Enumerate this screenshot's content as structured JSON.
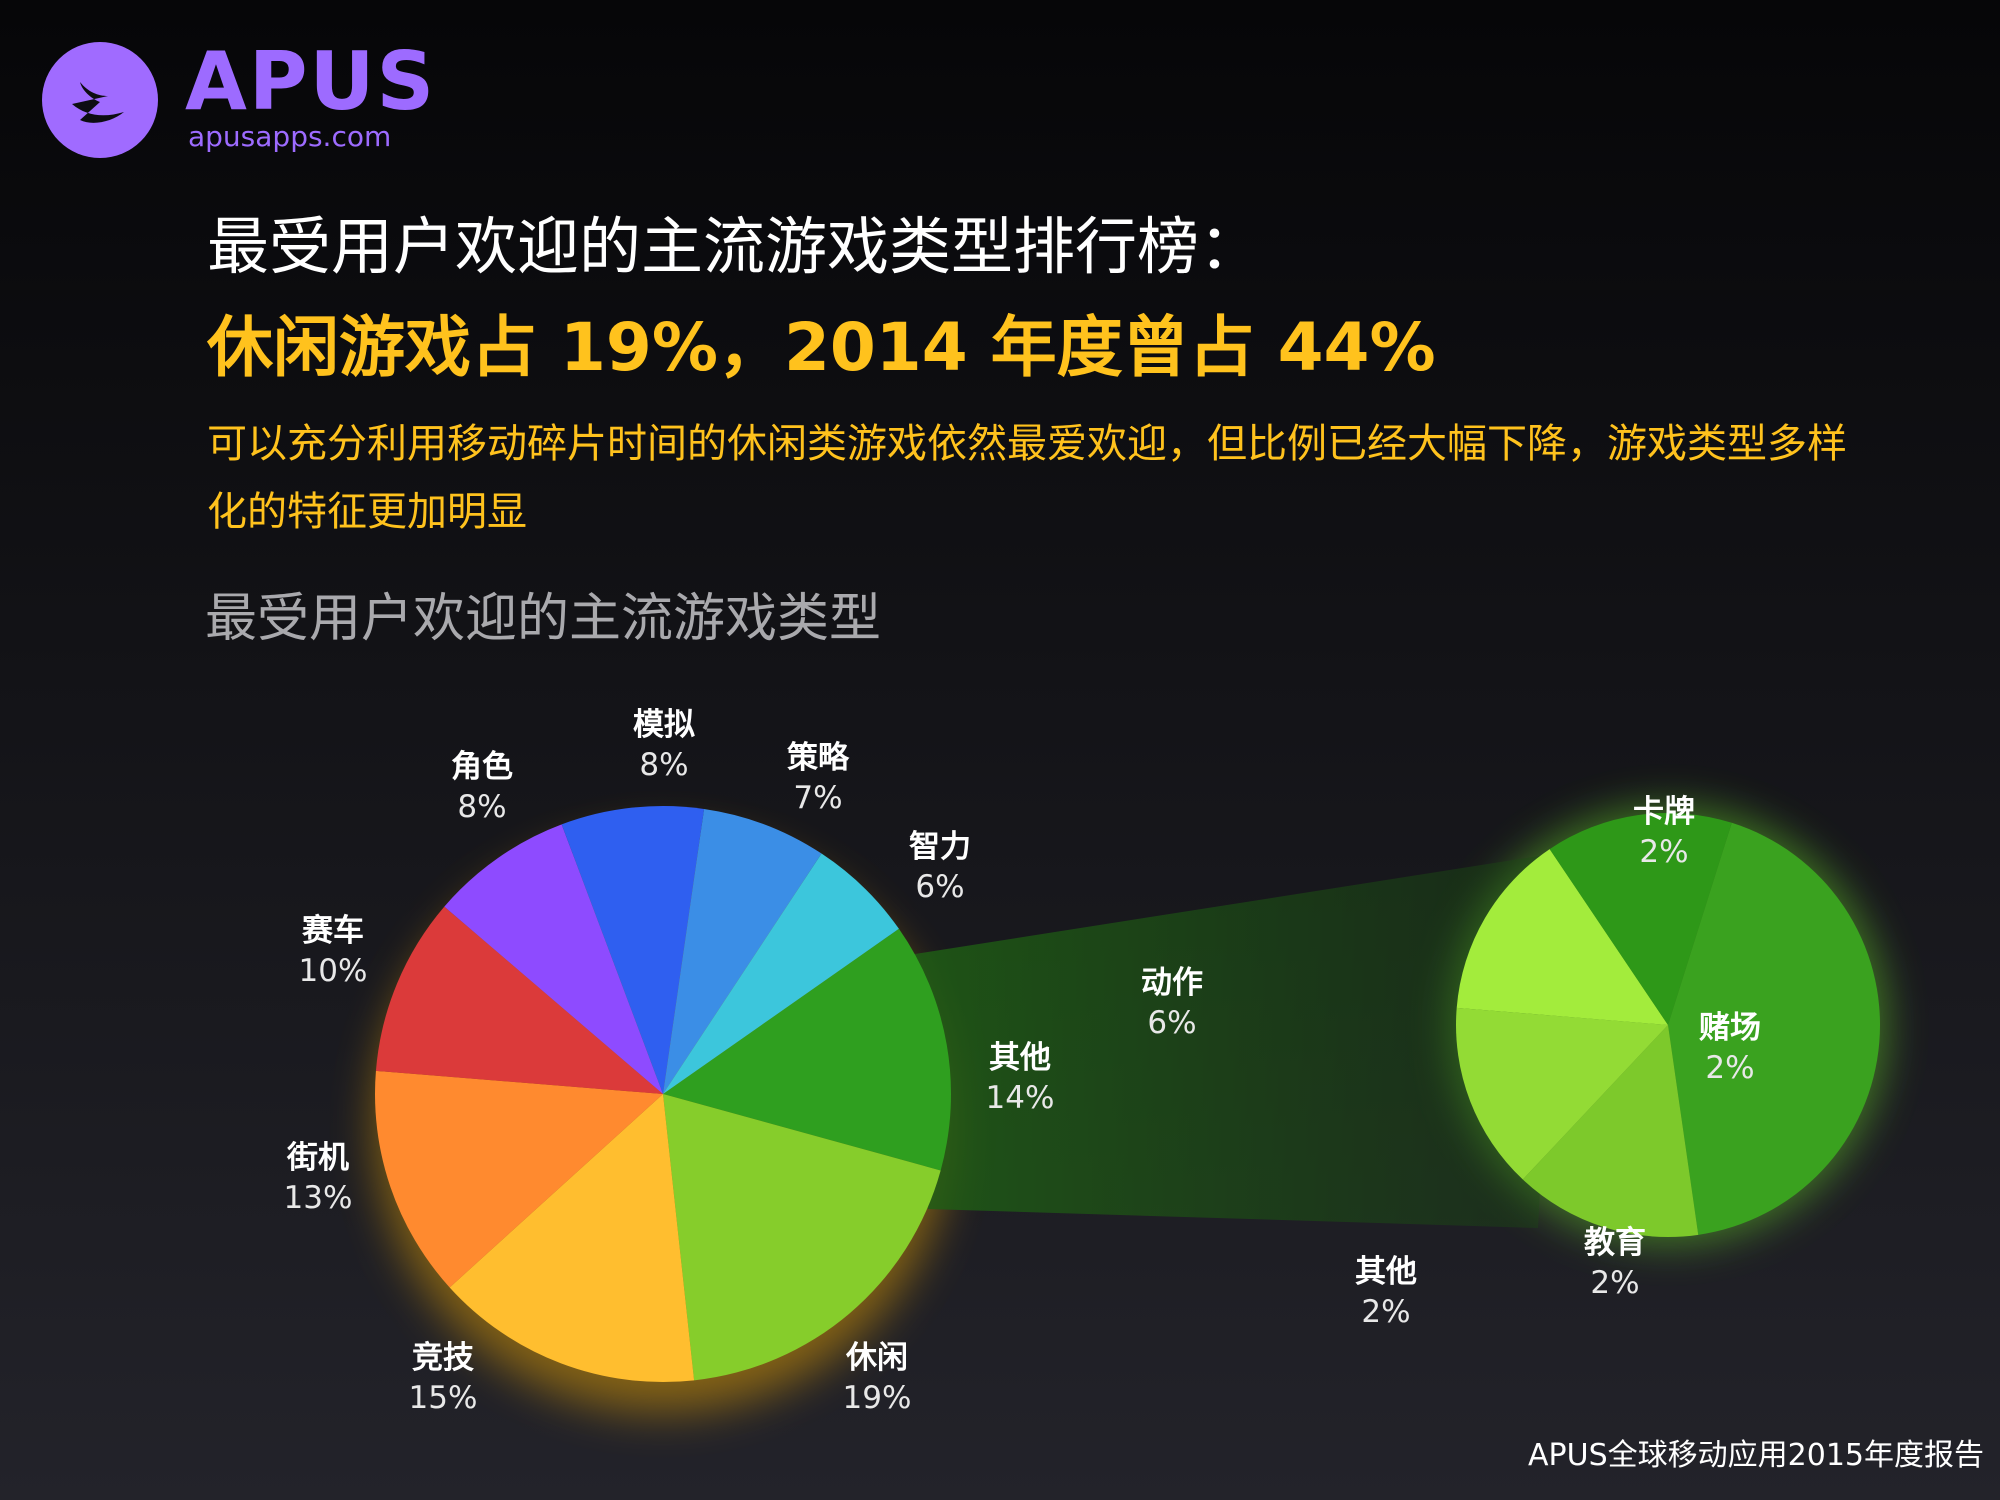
{
  "brand": {
    "name": "APUS",
    "url": "apusapps.com"
  },
  "headline": "最受用户欢迎的主流游戏类型排行榜：",
  "subheadline": "休闲游戏占 19%，2014 年度曾占 44%",
  "description": "可以充分利用移动碎片时间的休闲类游戏依然最爱欢迎，但比例已经大幅下降，游戏类型多样化的特征更加明显",
  "footer": "APUS全球移动应用2015年度报告",
  "colors": {
    "brand": "#9d6bff",
    "highlight": "#ffc21d"
  },
  "chart_data": [
    {
      "type": "pie",
      "title": "最受用户欢迎的主流游戏类型",
      "slices": [
        {
          "label": "其他",
          "value": 14,
          "value_label": "14%",
          "color": "#2f9f1f"
        },
        {
          "label": "休闲",
          "value": 19,
          "value_label": "19%",
          "color": "#86cd2b"
        },
        {
          "label": "竞技",
          "value": 15,
          "value_label": "15%",
          "color": "#ffbe2f"
        },
        {
          "label": "街机",
          "value": 13,
          "value_label": "13%",
          "color": "#ff8a2f"
        },
        {
          "label": "赛车",
          "value": 10,
          "value_label": "10%",
          "color": "#db3a3a"
        },
        {
          "label": "角色",
          "value": 8,
          "value_label": "8%",
          "color": "#8e4bff"
        },
        {
          "label": "模拟",
          "value": 8,
          "value_label": "8%",
          "color": "#2f5ff0"
        },
        {
          "label": "策略",
          "value": 7,
          "value_label": "7%",
          "color": "#3b8ee6"
        },
        {
          "label": "智力",
          "value": 6,
          "value_label": "6%",
          "color": "#3cc6dc"
        }
      ]
    },
    {
      "type": "pie",
      "breakdown_of": "其他",
      "slices": [
        {
          "label": "动作",
          "value": 6,
          "value_label": "6%",
          "color": "#3aa21f"
        },
        {
          "label": "卡牌",
          "value": 2,
          "value_label": "2%",
          "color": "#7dc92b"
        },
        {
          "label": "赌场",
          "value": 2,
          "value_label": "2%",
          "color": "#93db35"
        },
        {
          "label": "教育",
          "value": 2,
          "value_label": "2%",
          "color": "#a3ec3c"
        },
        {
          "label": "其他",
          "value": 2,
          "value_label": "2%",
          "color": "#2e9818"
        }
      ]
    }
  ]
}
